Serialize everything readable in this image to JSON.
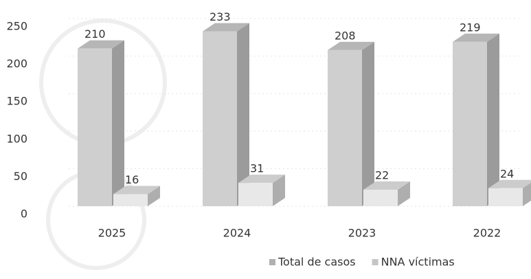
{
  "chart_data": {
    "type": "bar3d",
    "categories": [
      "2025",
      "2024",
      "2023",
      "2022"
    ],
    "series": [
      {
        "name": "Total de casos",
        "color": "#cfcfcf",
        "values": [
          210,
          233,
          208,
          219
        ]
      },
      {
        "name": "NNA víctimas",
        "color": "#e8e8e8",
        "values": [
          16,
          31,
          22,
          24
        ]
      }
    ],
    "ylim": [
      0,
      250
    ],
    "yticks": [
      0,
      50,
      100,
      150,
      200,
      250
    ],
    "grid": true,
    "legend": "bottom"
  }
}
